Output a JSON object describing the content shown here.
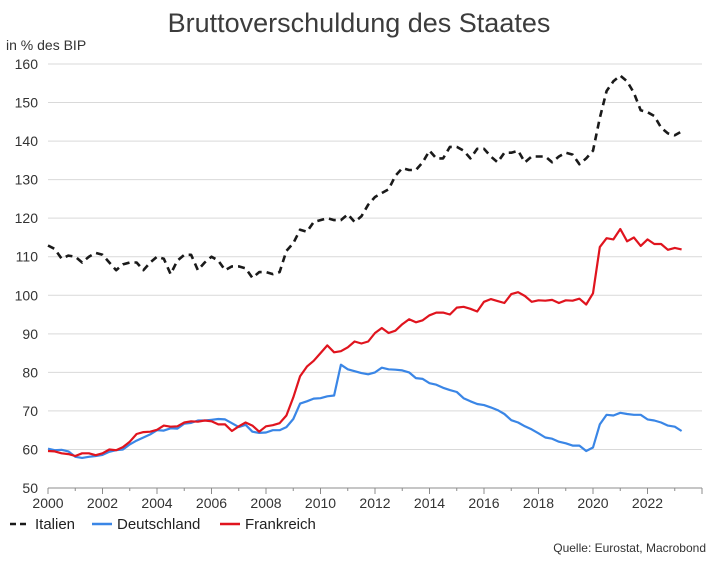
{
  "chart_data": {
    "type": "line",
    "title": "Bruttoverschuldung des Staates",
    "ylabel": "in % des BIP",
    "xlabel": "",
    "source": "Quelle: Eurostat, Macrobond",
    "xlim": [
      2000,
      2024
    ],
    "ylim": [
      50,
      160
    ],
    "x_ticks": [
      2000,
      2002,
      2004,
      2006,
      2008,
      2010,
      2012,
      2014,
      2016,
      2018,
      2020,
      2022
    ],
    "y_ticks": [
      50,
      60,
      70,
      80,
      90,
      100,
      110,
      120,
      130,
      140,
      150,
      160
    ],
    "grid": "horizontal",
    "legend_position": "bottom-left",
    "series": [
      {
        "name": "Italien",
        "color": "#1a1a1a",
        "style": "dashed",
        "points": [
          [
            2000.0,
            112.9
          ],
          [
            2000.25,
            112.0
          ],
          [
            2000.5,
            109.5
          ],
          [
            2000.75,
            110.3
          ],
          [
            2001.0,
            110.0
          ],
          [
            2001.25,
            108.5
          ],
          [
            2001.5,
            110.0
          ],
          [
            2001.75,
            111.0
          ],
          [
            2002.0,
            110.5
          ],
          [
            2002.25,
            108.5
          ],
          [
            2002.5,
            106.5
          ],
          [
            2002.75,
            108.0
          ],
          [
            2003.0,
            108.5
          ],
          [
            2003.25,
            108.5
          ],
          [
            2003.5,
            106.5
          ],
          [
            2003.75,
            108.5
          ],
          [
            2004.0,
            110.0
          ],
          [
            2004.25,
            109.5
          ],
          [
            2004.5,
            105.5
          ],
          [
            2004.75,
            109.0
          ],
          [
            2005.0,
            110.5
          ],
          [
            2005.25,
            110.5
          ],
          [
            2005.5,
            106.5
          ],
          [
            2005.75,
            108.5
          ],
          [
            2006.0,
            110.0
          ],
          [
            2006.25,
            109.0
          ],
          [
            2006.5,
            106.5
          ],
          [
            2006.75,
            107.5
          ],
          [
            2007.0,
            107.5
          ],
          [
            2007.25,
            107.0
          ],
          [
            2007.5,
            104.5
          ],
          [
            2007.75,
            106.0
          ],
          [
            2008.0,
            106.0
          ],
          [
            2008.25,
            105.5
          ],
          [
            2008.5,
            106.0
          ],
          [
            2008.75,
            111.5
          ],
          [
            2009.0,
            113.5
          ],
          [
            2009.25,
            117.0
          ],
          [
            2009.5,
            116.5
          ],
          [
            2009.75,
            119.0
          ],
          [
            2010.0,
            119.5
          ],
          [
            2010.25,
            120.0
          ],
          [
            2010.5,
            119.5
          ],
          [
            2010.75,
            119.5
          ],
          [
            2011.0,
            121.0
          ],
          [
            2011.25,
            119.0
          ],
          [
            2011.5,
            120.5
          ],
          [
            2011.75,
            123.5
          ],
          [
            2012.0,
            125.5
          ],
          [
            2012.25,
            126.5
          ],
          [
            2012.5,
            127.5
          ],
          [
            2012.75,
            131.0
          ],
          [
            2013.0,
            133.0
          ],
          [
            2013.25,
            132.5
          ],
          [
            2013.5,
            132.5
          ],
          [
            2013.75,
            134.5
          ],
          [
            2014.0,
            137.5
          ],
          [
            2014.25,
            135.5
          ],
          [
            2014.5,
            135.5
          ],
          [
            2014.75,
            138.5
          ],
          [
            2015.0,
            138.5
          ],
          [
            2015.25,
            137.5
          ],
          [
            2015.5,
            135.5
          ],
          [
            2015.75,
            138.0
          ],
          [
            2016.0,
            138.0
          ],
          [
            2016.25,
            136.0
          ],
          [
            2016.5,
            134.5
          ],
          [
            2016.75,
            137.0
          ],
          [
            2017.0,
            137.0
          ],
          [
            2017.25,
            137.5
          ],
          [
            2017.5,
            134.5
          ],
          [
            2017.75,
            136.0
          ],
          [
            2018.0,
            136.0
          ],
          [
            2018.25,
            136.0
          ],
          [
            2018.5,
            134.5
          ],
          [
            2018.75,
            136.0
          ],
          [
            2019.0,
            137.0
          ],
          [
            2019.25,
            136.5
          ],
          [
            2019.5,
            134.0
          ],
          [
            2019.75,
            135.5
          ],
          [
            2020.0,
            137.5
          ],
          [
            2020.25,
            146.0
          ],
          [
            2020.5,
            153.0
          ],
          [
            2020.75,
            155.5
          ],
          [
            2021.0,
            157.0
          ],
          [
            2021.25,
            155.5
          ],
          [
            2021.5,
            152.5
          ],
          [
            2021.75,
            148.0
          ],
          [
            2022.0,
            147.5
          ],
          [
            2022.25,
            146.5
          ],
          [
            2022.5,
            143.5
          ],
          [
            2022.75,
            142.0
          ],
          [
            2023.0,
            141.5
          ],
          [
            2023.25,
            142.5
          ]
        ]
      },
      {
        "name": "Deutschland",
        "color": "#3a86e6",
        "style": "solid",
        "points": [
          [
            2000.0,
            60.2
          ],
          [
            2000.25,
            59.8
          ],
          [
            2000.5,
            59.9
          ],
          [
            2000.75,
            59.5
          ],
          [
            2001.0,
            58.1
          ],
          [
            2001.25,
            57.8
          ],
          [
            2001.5,
            58.1
          ],
          [
            2001.75,
            58.3
          ],
          [
            2002.0,
            58.6
          ],
          [
            2002.25,
            59.4
          ],
          [
            2002.5,
            59.8
          ],
          [
            2002.75,
            60.0
          ],
          [
            2003.0,
            61.3
          ],
          [
            2003.25,
            62.3
          ],
          [
            2003.5,
            63.1
          ],
          [
            2003.75,
            63.9
          ],
          [
            2004.0,
            65.0
          ],
          [
            2004.25,
            64.9
          ],
          [
            2004.5,
            65.5
          ],
          [
            2004.75,
            65.4
          ],
          [
            2005.0,
            66.7
          ],
          [
            2005.25,
            66.9
          ],
          [
            2005.5,
            67.5
          ],
          [
            2005.75,
            67.5
          ],
          [
            2006.0,
            67.7
          ],
          [
            2006.25,
            67.9
          ],
          [
            2006.5,
            67.8
          ],
          [
            2006.75,
            66.8
          ],
          [
            2007.0,
            65.8
          ],
          [
            2007.25,
            66.4
          ],
          [
            2007.5,
            64.6
          ],
          [
            2007.75,
            64.3
          ],
          [
            2008.0,
            64.4
          ],
          [
            2008.25,
            65.0
          ],
          [
            2008.5,
            65.0
          ],
          [
            2008.75,
            65.8
          ],
          [
            2009.0,
            67.9
          ],
          [
            2009.25,
            71.9
          ],
          [
            2009.5,
            72.5
          ],
          [
            2009.75,
            73.2
          ],
          [
            2010.0,
            73.3
          ],
          [
            2010.25,
            73.8
          ],
          [
            2010.5,
            74.0
          ],
          [
            2010.75,
            82.0
          ],
          [
            2011.0,
            80.8
          ],
          [
            2011.25,
            80.3
          ],
          [
            2011.5,
            79.8
          ],
          [
            2011.75,
            79.5
          ],
          [
            2012.0,
            80.0
          ],
          [
            2012.25,
            81.2
          ],
          [
            2012.5,
            80.8
          ],
          [
            2012.75,
            80.7
          ],
          [
            2013.0,
            80.5
          ],
          [
            2013.25,
            80.0
          ],
          [
            2013.5,
            78.5
          ],
          [
            2013.75,
            78.3
          ],
          [
            2014.0,
            77.2
          ],
          [
            2014.25,
            76.8
          ],
          [
            2014.5,
            76.0
          ],
          [
            2014.75,
            75.4
          ],
          [
            2015.0,
            74.9
          ],
          [
            2015.25,
            73.3
          ],
          [
            2015.5,
            72.5
          ],
          [
            2015.75,
            71.8
          ],
          [
            2016.0,
            71.5
          ],
          [
            2016.25,
            70.9
          ],
          [
            2016.5,
            70.2
          ],
          [
            2016.75,
            69.2
          ],
          [
            2017.0,
            67.6
          ],
          [
            2017.25,
            67.0
          ],
          [
            2017.5,
            66.0
          ],
          [
            2017.75,
            65.2
          ],
          [
            2018.0,
            64.2
          ],
          [
            2018.25,
            63.1
          ],
          [
            2018.5,
            62.8
          ],
          [
            2018.75,
            62.0
          ],
          [
            2019.0,
            61.6
          ],
          [
            2019.25,
            61.0
          ],
          [
            2019.5,
            61.0
          ],
          [
            2019.75,
            59.6
          ],
          [
            2020.0,
            60.5
          ],
          [
            2020.25,
            66.5
          ],
          [
            2020.5,
            69.0
          ],
          [
            2020.75,
            68.8
          ],
          [
            2021.0,
            69.5
          ],
          [
            2021.25,
            69.2
          ],
          [
            2021.5,
            69.0
          ],
          [
            2021.75,
            69.0
          ],
          [
            2022.0,
            67.8
          ],
          [
            2022.25,
            67.5
          ],
          [
            2022.5,
            67.0
          ],
          [
            2022.75,
            66.2
          ],
          [
            2023.0,
            65.9
          ],
          [
            2023.25,
            64.8
          ]
        ]
      },
      {
        "name": "Frankreich",
        "color": "#e0141e",
        "style": "solid",
        "points": [
          [
            2000.0,
            59.6
          ],
          [
            2000.25,
            59.5
          ],
          [
            2000.5,
            59.0
          ],
          [
            2000.75,
            58.8
          ],
          [
            2001.0,
            58.3
          ],
          [
            2001.25,
            59.0
          ],
          [
            2001.5,
            59.0
          ],
          [
            2001.75,
            58.5
          ],
          [
            2002.0,
            59.0
          ],
          [
            2002.25,
            60.0
          ],
          [
            2002.5,
            59.8
          ],
          [
            2002.75,
            60.6
          ],
          [
            2003.0,
            62.0
          ],
          [
            2003.25,
            64.0
          ],
          [
            2003.5,
            64.5
          ],
          [
            2003.75,
            64.6
          ],
          [
            2004.0,
            65.1
          ],
          [
            2004.25,
            66.2
          ],
          [
            2004.5,
            65.9
          ],
          [
            2004.75,
            66.0
          ],
          [
            2005.0,
            67.0
          ],
          [
            2005.25,
            67.3
          ],
          [
            2005.5,
            67.2
          ],
          [
            2005.75,
            67.5
          ],
          [
            2006.0,
            67.3
          ],
          [
            2006.25,
            66.5
          ],
          [
            2006.5,
            66.5
          ],
          [
            2006.75,
            64.8
          ],
          [
            2007.0,
            66.0
          ],
          [
            2007.25,
            67.0
          ],
          [
            2007.5,
            66.2
          ],
          [
            2007.75,
            64.6
          ],
          [
            2008.0,
            66.0
          ],
          [
            2008.25,
            66.3
          ],
          [
            2008.5,
            66.8
          ],
          [
            2008.75,
            68.8
          ],
          [
            2009.0,
            73.5
          ],
          [
            2009.25,
            79.0
          ],
          [
            2009.5,
            81.5
          ],
          [
            2009.75,
            83.0
          ],
          [
            2010.0,
            85.0
          ],
          [
            2010.25,
            87.0
          ],
          [
            2010.5,
            85.2
          ],
          [
            2010.75,
            85.5
          ],
          [
            2011.0,
            86.5
          ],
          [
            2011.25,
            88.0
          ],
          [
            2011.5,
            87.5
          ],
          [
            2011.75,
            88.0
          ],
          [
            2012.0,
            90.2
          ],
          [
            2012.25,
            91.5
          ],
          [
            2012.5,
            90.2
          ],
          [
            2012.75,
            90.8
          ],
          [
            2013.0,
            92.5
          ],
          [
            2013.25,
            93.8
          ],
          [
            2013.5,
            93.0
          ],
          [
            2013.75,
            93.5
          ],
          [
            2014.0,
            94.8
          ],
          [
            2014.25,
            95.5
          ],
          [
            2014.5,
            95.5
          ],
          [
            2014.75,
            95.0
          ],
          [
            2015.0,
            96.8
          ],
          [
            2015.25,
            97.0
          ],
          [
            2015.5,
            96.5
          ],
          [
            2015.75,
            95.8
          ],
          [
            2016.0,
            98.3
          ],
          [
            2016.25,
            99.0
          ],
          [
            2016.5,
            98.5
          ],
          [
            2016.75,
            98.0
          ],
          [
            2017.0,
            100.3
          ],
          [
            2017.25,
            100.8
          ],
          [
            2017.5,
            99.8
          ],
          [
            2017.75,
            98.3
          ],
          [
            2018.0,
            98.7
          ],
          [
            2018.25,
            98.6
          ],
          [
            2018.5,
            98.8
          ],
          [
            2018.75,
            98.0
          ],
          [
            2019.0,
            98.7
          ],
          [
            2019.25,
            98.6
          ],
          [
            2019.5,
            99.1
          ],
          [
            2019.75,
            97.6
          ],
          [
            2020.0,
            100.5
          ],
          [
            2020.25,
            112.5
          ],
          [
            2020.5,
            114.8
          ],
          [
            2020.75,
            114.5
          ],
          [
            2021.0,
            117.2
          ],
          [
            2021.25,
            114.0
          ],
          [
            2021.5,
            115.0
          ],
          [
            2021.75,
            112.8
          ],
          [
            2022.0,
            114.5
          ],
          [
            2022.25,
            113.3
          ],
          [
            2022.5,
            113.3
          ],
          [
            2022.75,
            111.8
          ],
          [
            2023.0,
            112.3
          ],
          [
            2023.25,
            111.9
          ]
        ]
      }
    ]
  }
}
